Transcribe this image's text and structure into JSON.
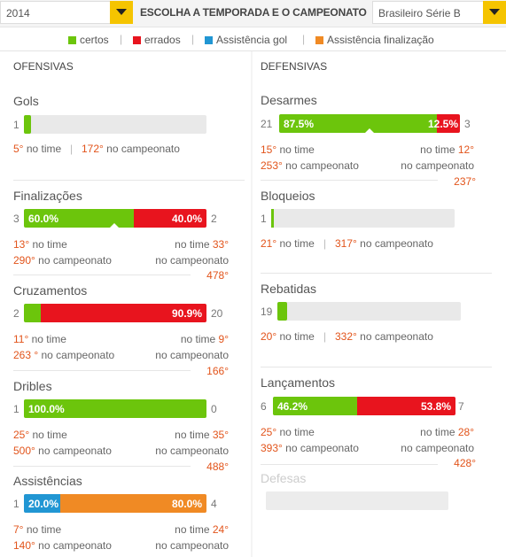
{
  "header": {
    "year": "2014",
    "title": "ESCOLHA A TEMPORADA E O CAMPEONATO",
    "championship": "Brasileiro Série B"
  },
  "legend": [
    {
      "label": "certos",
      "color": "#6cc50c"
    },
    {
      "label": "errados",
      "color": "#e8141e"
    },
    {
      "label": "Assistência gol",
      "color": "#2196d3"
    },
    {
      "label": "Assistência finalização",
      "color": "#f08a24"
    }
  ],
  "colors": {
    "green": "#6cc50c",
    "red": "#e8141e",
    "blue": "#2196d3",
    "orange": "#f08a24",
    "rank": "#e2541b"
  },
  "offensive": {
    "title": "OFENSIVAS",
    "gols": {
      "title": "Gols",
      "count": "1",
      "fill": 0.04,
      "rank_team": "5°",
      "rank_team_label": "no time",
      "rank_champ": "172°",
      "rank_champ_label": "no campeonato"
    },
    "finalizacoes": {
      "title": "Finalizações",
      "left_count": "3",
      "right_count": "2",
      "left_pct": "60.0%",
      "right_pct": "40.0%",
      "left_team_rank": "13°",
      "left_champ_rank": "290°",
      "right_team_rank": "33°",
      "right_champ_rank": "478°",
      "team_label": "no time",
      "champ_label": "no campeonato"
    },
    "cruzamentos": {
      "title": "Cruzamentos",
      "left_count": "2",
      "right_count": "20",
      "right_pct": "90.9%",
      "left_team_rank": "11°",
      "left_champ_rank": "263 °",
      "right_team_rank": "9°",
      "right_champ_rank": "166°",
      "team_label": "no time",
      "champ_label": "no campeonato"
    },
    "dribles": {
      "title": "Dribles",
      "left_count": "1",
      "right_count": "0",
      "left_pct": "100.0%",
      "left_team_rank": "25°",
      "left_champ_rank": "500°",
      "right_team_rank": "35°",
      "right_champ_rank": "488°",
      "team_label": "no time",
      "champ_label": "no campeonato"
    },
    "assistencias": {
      "title": "Assistências",
      "left_count": "1",
      "right_count": "4",
      "left_pct": "20.0%",
      "right_pct": "80.0%",
      "left_team_rank": "7°",
      "left_champ_rank": "140°",
      "right_team_rank": "24°",
      "team_label": "no time",
      "champ_label": "no campeonato"
    }
  },
  "defensive": {
    "title": "DEFENSIVAS",
    "desarmes": {
      "title": "Desarmes",
      "left_count": "21",
      "right_count": "3",
      "left_pct": "87.5%",
      "right_pct": "12.5%",
      "left_team_rank": "15°",
      "left_champ_rank": "253°",
      "right_team_rank": "12°",
      "right_champ_rank": "237°",
      "team_label": "no time",
      "champ_label": "no campeonato"
    },
    "bloqueios": {
      "title": "Bloqueios",
      "count": "1",
      "fill": 0.01,
      "rank_team": "21°",
      "rank_team_label": "no time",
      "rank_champ": "317°",
      "rank_champ_label": "no campeonato"
    },
    "rebatidas": {
      "title": "Rebatidas",
      "count": "19",
      "fill": 0.05,
      "rank_team": "20°",
      "rank_team_label": "no time",
      "rank_champ": "332°",
      "rank_champ_label": "no campeonato"
    },
    "lancamentos": {
      "title": "Lançamentos",
      "left_count": "6",
      "right_count": "7",
      "left_pct": "46.2%",
      "right_pct": "53.8%",
      "left_team_rank": "25°",
      "left_champ_rank": "393°",
      "right_team_rank": "28°",
      "right_champ_rank": "428°",
      "team_label": "no time",
      "champ_label": "no campeonato"
    },
    "defesas": {
      "title": "Defesas"
    }
  }
}
